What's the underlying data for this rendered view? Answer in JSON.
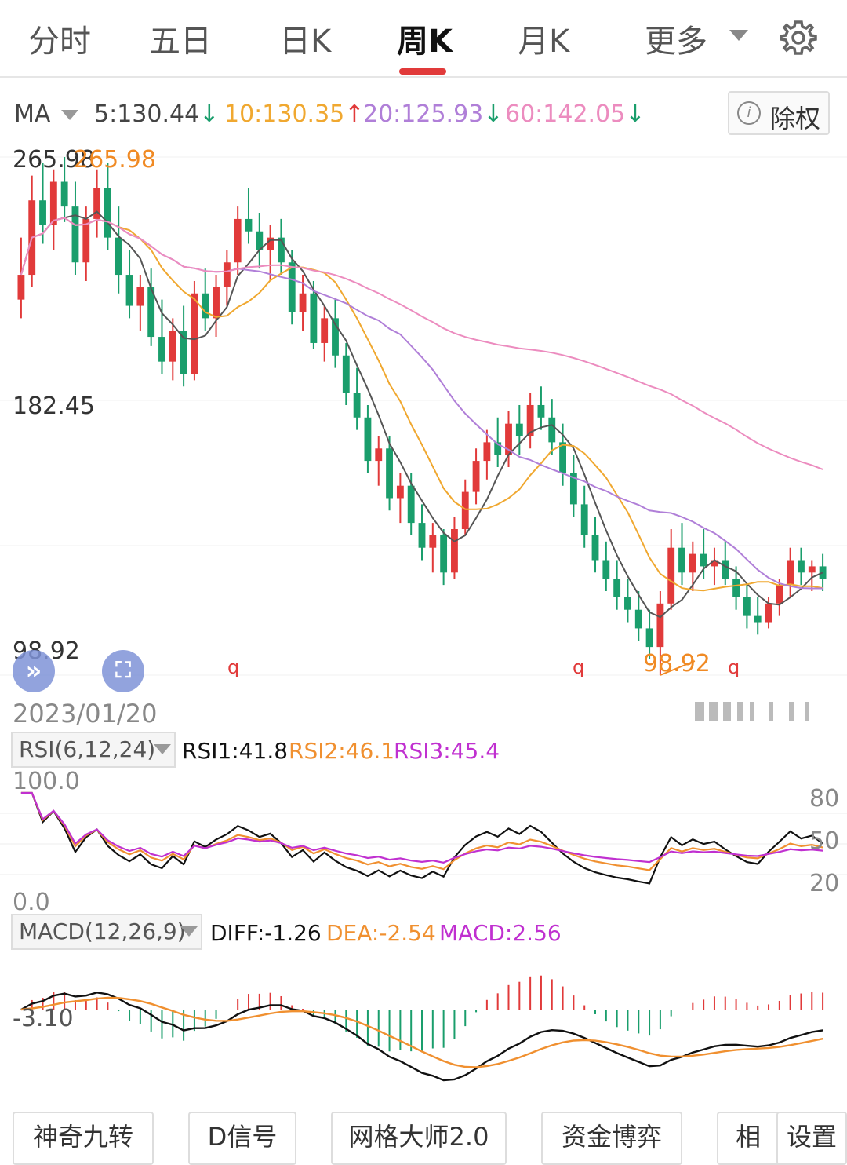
{
  "tabs": [
    {
      "label": "分时",
      "active": false
    },
    {
      "label": "五日",
      "active": false
    },
    {
      "label": "日K",
      "active": false
    },
    {
      "label": "周K",
      "active": true
    },
    {
      "label": "月K",
      "active": false
    },
    {
      "label": "更多",
      "active": false
    }
  ],
  "ma_bar": {
    "selector": "MA",
    "ma5": "5:130.44",
    "ma10": "10:130.35",
    "ma20": "20:125.93",
    "ma60": "60:142.05",
    "adjust_button": "除权"
  },
  "price_axis": {
    "top": "265.98",
    "mid": "182.45",
    "bottom": "98.92"
  },
  "date_label": "2023/01/20",
  "annotations": {
    "high": "265.98",
    "low": "98.92",
    "marker": "q"
  },
  "rsi": {
    "selector": "RSI(6,12,24)",
    "rsi1": "RSI1:41.8",
    "rsi2": "RSI2:46.1",
    "rsi3": "RSI3:45.4",
    "axis_top": "100.0",
    "axis_bottom": "0.0",
    "levels": [
      "80",
      "50",
      "20"
    ]
  },
  "macd": {
    "selector": "MACD(12,26,9)",
    "diff": "DIFF:-1.26",
    "dea": "DEA:-2.54",
    "macd": "MACD:2.56",
    "axis_label": "-3.10"
  },
  "bottom_buttons": [
    "神奇九转",
    "D信号",
    "网格大师2.0",
    "资金博弈",
    "相",
    "设置"
  ],
  "colors": {
    "up": "#e13a3a",
    "down": "#1a9e6c",
    "ma5": "#555555",
    "ma10": "#f0a830",
    "ma20": "#b07fd8",
    "ma60": "#ec8cbf",
    "rsi1": "#111111",
    "rsi2": "#f09030",
    "rsi3": "#c030d0",
    "active_tab": "#e13a3a"
  },
  "chart_data": {
    "type": "candlestick",
    "period": "weekly",
    "start_date": "2023/01/20",
    "ylim": [
      98.92,
      265.98
    ],
    "high": 265.98,
    "low": 98.92,
    "ohlc": [
      [
        220.0,
        240.0,
        214.0,
        228.0
      ],
      [
        228.0,
        260.0,
        224.0,
        252.0
      ],
      [
        252.0,
        264.0,
        238.0,
        244.0
      ],
      [
        244.0,
        262.0,
        236.0,
        258.0
      ],
      [
        258.0,
        265.98,
        245.0,
        250.0
      ],
      [
        250.0,
        258.0,
        228.0,
        232.0
      ],
      [
        232.0,
        250.0,
        226.0,
        246.0
      ],
      [
        246.0,
        262.0,
        240.0,
        256.0
      ],
      [
        256.0,
        264.0,
        236.0,
        240.0
      ],
      [
        240.0,
        250.0,
        222.0,
        228.0
      ],
      [
        228.0,
        236.0,
        214.0,
        218.0
      ],
      [
        218.0,
        228.0,
        210.0,
        224.0
      ],
      [
        224.0,
        230.0,
        205.0,
        208.0
      ],
      [
        208.0,
        220.0,
        196.0,
        200.0
      ],
      [
        200.0,
        214.0,
        194.0,
        210.0
      ],
      [
        210.0,
        218.0,
        192.0,
        196.0
      ],
      [
        196.0,
        226.0,
        194.0,
        222.0
      ],
      [
        222.0,
        230.0,
        210.0,
        214.0
      ],
      [
        214.0,
        228.0,
        208.0,
        224.0
      ],
      [
        224.0,
        236.0,
        218.0,
        232.0
      ],
      [
        232.0,
        250.0,
        228.0,
        246.0
      ],
      [
        246.0,
        256.0,
        238.0,
        242.0
      ],
      [
        242.0,
        248.0,
        230.0,
        236.0
      ],
      [
        236.0,
        244.0,
        226.0,
        240.0
      ],
      [
        240.0,
        246.0,
        228.0,
        232.0
      ],
      [
        232.0,
        236.0,
        212.0,
        216.0
      ],
      [
        216.0,
        228.0,
        210.0,
        222.0
      ],
      [
        222.0,
        226.0,
        204.0,
        206.0
      ],
      [
        206.0,
        218.0,
        200.0,
        214.0
      ],
      [
        214.0,
        220.0,
        198.0,
        202.0
      ],
      [
        202.0,
        206.0,
        186.0,
        190.0
      ],
      [
        190.0,
        198.0,
        178.0,
        182.0
      ],
      [
        182.0,
        186.0,
        164.0,
        168.0
      ],
      [
        168.0,
        176.0,
        160.0,
        172.0
      ],
      [
        172.0,
        176.0,
        152.0,
        156.0
      ],
      [
        156.0,
        164.0,
        148.0,
        160.0
      ],
      [
        160.0,
        164.0,
        144.0,
        148.0
      ],
      [
        148.0,
        154.0,
        136.0,
        140.0
      ],
      [
        140.0,
        148.0,
        132.0,
        144.0
      ],
      [
        144.0,
        146.0,
        128.0,
        132.0
      ],
      [
        132.0,
        150.0,
        130.0,
        146.0
      ],
      [
        146.0,
        162.0,
        144.0,
        158.0
      ],
      [
        158.0,
        172.0,
        154.0,
        168.0
      ],
      [
        168.0,
        178.0,
        162.0,
        174.0
      ],
      [
        174.0,
        182.0,
        166.0,
        170.0
      ],
      [
        170.0,
        184.0,
        166.0,
        180.0
      ],
      [
        180.0,
        186.0,
        170.0,
        176.0
      ],
      [
        176.0,
        190.0,
        172.0,
        186.0
      ],
      [
        186.0,
        192.0,
        178.0,
        182.0
      ],
      [
        182.0,
        188.0,
        170.0,
        174.0
      ],
      [
        174.0,
        180.0,
        160.0,
        164.0
      ],
      [
        164.0,
        170.0,
        150.0,
        154.0
      ],
      [
        154.0,
        160.0,
        140.0,
        144.0
      ],
      [
        144.0,
        150.0,
        132.0,
        136.0
      ],
      [
        136.0,
        142.0,
        126.0,
        130.0
      ],
      [
        130.0,
        136.0,
        120.0,
        124.0
      ],
      [
        124.0,
        130.0,
        116.0,
        120.0
      ],
      [
        120.0,
        126.0,
        110.0,
        114.0
      ],
      [
        114.0,
        120.0,
        104.0,
        108.0
      ],
      [
        108.0,
        126.0,
        98.92,
        122.0
      ],
      [
        122.0,
        146.0,
        120.0,
        140.0
      ],
      [
        140.0,
        148.0,
        128.0,
        132.0
      ],
      [
        132.0,
        142.0,
        126.0,
        138.0
      ],
      [
        138.0,
        146.0,
        130.0,
        134.0
      ],
      [
        134.0,
        140.0,
        128.0,
        136.0
      ],
      [
        136.0,
        142.0,
        128.0,
        130.0
      ],
      [
        130.0,
        134.0,
        120.0,
        124.0
      ],
      [
        124.0,
        128.0,
        114.0,
        118.0
      ],
      [
        118.0,
        124.0,
        112.0,
        116.0
      ],
      [
        116.0,
        124.0,
        114.0,
        122.0
      ],
      [
        122.0,
        130.0,
        118.0,
        128.0
      ],
      [
        128.0,
        140.0,
        124.0,
        136.0
      ],
      [
        136.0,
        140.0,
        128.0,
        132.0
      ],
      [
        132.0,
        136.0,
        126.0,
        134.0
      ],
      [
        134.0,
        138.0,
        126.0,
        130.0
      ]
    ],
    "ma": {
      "ma5": 130.44,
      "ma10": 130.35,
      "ma20": 125.93,
      "ma60": 142.05
    },
    "rsi": {
      "rsi1": 41.8,
      "rsi2": 46.1,
      "rsi3": 45.4,
      "levels": [
        80,
        50,
        20
      ]
    },
    "macd": {
      "diff": -1.26,
      "dea": -2.54,
      "macd": 2.56
    }
  }
}
